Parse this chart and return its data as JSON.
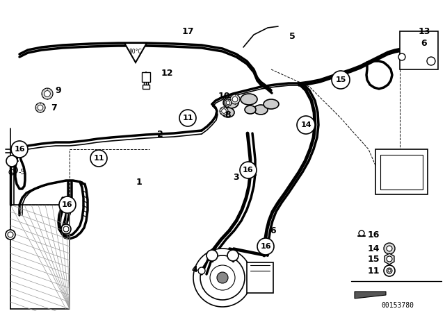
{
  "bg_color": "#ffffff",
  "line_color": "#000000",
  "part_number_text": "00153780",
  "pipe_lw": 2.5,
  "thin_lw": 1.2,
  "label_fontsize": 9
}
